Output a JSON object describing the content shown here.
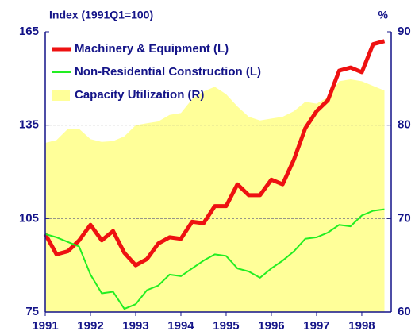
{
  "chart_data": {
    "type": "line",
    "title": "Index (1991Q1=100)",
    "y2_title": "%",
    "x": [
      1991,
      1991.25,
      1991.5,
      1991.75,
      1992,
      1992.25,
      1992.5,
      1992.75,
      1993,
      1993.25,
      1993.5,
      1993.75,
      1994,
      1994.25,
      1994.5,
      1994.75,
      1995,
      1995.25,
      1995.5,
      1995.75,
      1996,
      1996.25,
      1996.5,
      1996.75,
      1997,
      1997.25,
      1997.5,
      1997.75,
      1998,
      1998.25,
      1998.5
    ],
    "xlim": [
      1991,
      1998.65
    ],
    "xticks": [
      1991,
      1992,
      1993,
      1994,
      1995,
      1996,
      1997,
      1998
    ],
    "ylim": [
      75,
      165
    ],
    "yticks": [
      75,
      105,
      135,
      165
    ],
    "y2lim": [
      60,
      90
    ],
    "y2ticks": [
      60,
      70,
      80,
      90
    ],
    "grid": true,
    "legend": "top-left",
    "series": [
      {
        "name": "Machinery & Equipment (L)",
        "color": "#ee1111",
        "type": "line",
        "values": [
          100,
          93.5,
          94.5,
          98,
          103,
          98,
          101,
          94,
          90,
          92,
          97,
          99,
          98.5,
          104,
          103.5,
          109,
          109,
          116,
          112.5,
          112.5,
          117.5,
          116,
          124,
          134,
          139.5,
          143,
          152.5,
          153.5,
          152,
          161,
          162
        ]
      },
      {
        "name": "Non-Residential Construction (L)",
        "color": "#22ee22",
        "type": "line",
        "values": [
          100,
          99,
          97.5,
          96,
          87,
          81,
          81.5,
          76,
          77.5,
          82,
          83.5,
          87,
          86.5,
          89,
          91.5,
          93.5,
          93,
          89,
          88,
          86,
          89,
          91.5,
          94.5,
          98.5,
          99,
          100.5,
          103,
          102.5,
          106,
          107.5,
          108
        ]
      },
      {
        "name": "Capacity Utilization (R)",
        "color": "#ffff99",
        "type": "area",
        "axis": "y2",
        "values": [
          78.1,
          78.4,
          79.6,
          79.6,
          78.5,
          78.2,
          78.3,
          78.8,
          80,
          80.2,
          80.4,
          81.1,
          81.3,
          82.8,
          83.6,
          84.1,
          83.3,
          82,
          80.9,
          80.5,
          80.7,
          80.9,
          81.5,
          82.5,
          82.3,
          83,
          84.7,
          84.9,
          84.7,
          84.2,
          83.7
        ]
      }
    ]
  }
}
